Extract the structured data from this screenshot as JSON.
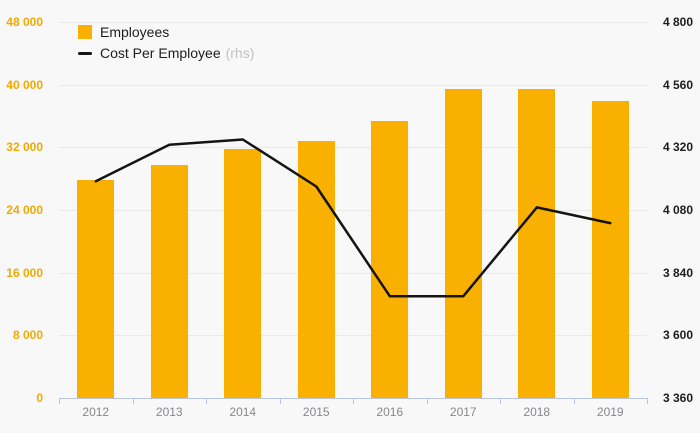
{
  "legend": {
    "items": [
      {
        "label": "Employees",
        "marker": "bar-swatch-icon"
      },
      {
        "label": "Cost Per Employee",
        "suffix": "(rhs)",
        "marker": "line-swatch-icon"
      }
    ]
  },
  "colors": {
    "bar": "#F9B000",
    "line": "#141414",
    "left_axis_text": "#F2A900",
    "right_axis_text": "#1D1D1D",
    "x_axis_text": "#87888C",
    "gridline": "#E9E9E9",
    "axis_line": "#B9C5E0",
    "background": "#F8F8F8",
    "rhs_suffix_text": "#C2C2C6"
  },
  "chart_data": {
    "type": "bar+line combo",
    "categories": [
      "2012",
      "2013",
      "2014",
      "2015",
      "2016",
      "2017",
      "2018",
      "2019"
    ],
    "series": [
      {
        "name": "Employees",
        "type": "bar",
        "axis": "left",
        "values": [
          27800,
          29800,
          31800,
          32800,
          35400,
          39500,
          39500,
          37900
        ]
      },
      {
        "name": "Cost Per Employee (rhs)",
        "type": "line",
        "axis": "right",
        "values": [
          4190,
          4330,
          4350,
          4170,
          3750,
          3750,
          4090,
          4030
        ]
      }
    ],
    "left_axis": {
      "min": 0,
      "max": 48000,
      "step": 8000,
      "tick_labels_top_down": [
        "48 000",
        "40 000",
        "32 000",
        "24 000",
        "16 000",
        "8 000",
        "0"
      ]
    },
    "right_axis": {
      "min": 3360,
      "max": 4800,
      "step": 240,
      "tick_labels_top_down": [
        "4 800",
        "4 560",
        "4 320",
        "4 080",
        "3 840",
        "3 600",
        "3 360"
      ]
    },
    "grid": "horizontal",
    "legend_position": "top-left"
  }
}
